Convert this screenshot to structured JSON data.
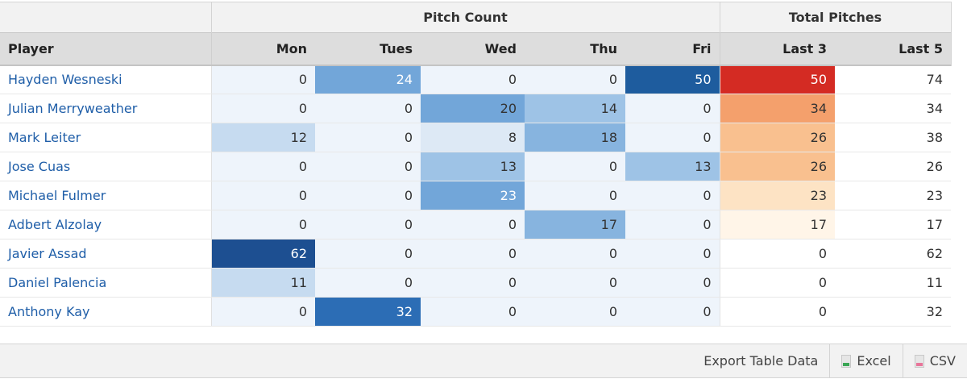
{
  "header": {
    "group_pitch_count": "Pitch Count",
    "group_total_pitches": "Total Pitches",
    "columns": [
      "Player",
      "Mon",
      "Tues",
      "Wed",
      "Thu",
      "Fri",
      "Last 3",
      "Last 5"
    ]
  },
  "rows": [
    {
      "player": "Hayden Wesneski",
      "mon": "0",
      "tues": "24",
      "wed": "0",
      "thu": "0",
      "fri": "50",
      "last3": "50",
      "last5": "74"
    },
    {
      "player": "Julian Merryweather",
      "mon": "0",
      "tues": "0",
      "wed": "20",
      "thu": "14",
      "fri": "0",
      "last3": "34",
      "last5": "34"
    },
    {
      "player": "Mark Leiter",
      "mon": "12",
      "tues": "0",
      "wed": "8",
      "thu": "18",
      "fri": "0",
      "last3": "26",
      "last5": "38"
    },
    {
      "player": "Jose Cuas",
      "mon": "0",
      "tues": "0",
      "wed": "13",
      "thu": "0",
      "fri": "13",
      "last3": "26",
      "last5": "26"
    },
    {
      "player": "Michael Fulmer",
      "mon": "0",
      "tues": "0",
      "wed": "23",
      "thu": "0",
      "fri": "0",
      "last3": "23",
      "last5": "23"
    },
    {
      "player": "Adbert Alzolay",
      "mon": "0",
      "tues": "0",
      "wed": "0",
      "thu": "17",
      "fri": "0",
      "last3": "17",
      "last5": "17"
    },
    {
      "player": "Javier Assad",
      "mon": "62",
      "tues": "0",
      "wed": "0",
      "thu": "0",
      "fri": "0",
      "last3": "0",
      "last5": "62"
    },
    {
      "player": "Daniel Palencia",
      "mon": "11",
      "tues": "0",
      "wed": "0",
      "thu": "0",
      "fri": "0",
      "last3": "0",
      "last5": "11"
    },
    {
      "player": "Anthony Kay",
      "mon": "0",
      "tues": "32",
      "wed": "0",
      "thu": "0",
      "fri": "0",
      "last3": "0",
      "last5": "32"
    }
  ],
  "heat_colors": {
    "blue_scale": [
      "#eef4fb",
      "#c6dbf0",
      "#9ec3e6",
      "#87b4df",
      "#72a6d9",
      "#5b93cf",
      "#2c6db5",
      "#1d4f91"
    ],
    "red_scale": [
      "#ffffff",
      "#fff5e8",
      "#fde3c4",
      "#f9c08f",
      "#f4a06c",
      "#d42b23"
    ]
  },
  "footer": {
    "export_label": "Export Table Data",
    "excel_label": "Excel",
    "csv_label": "CSV"
  }
}
